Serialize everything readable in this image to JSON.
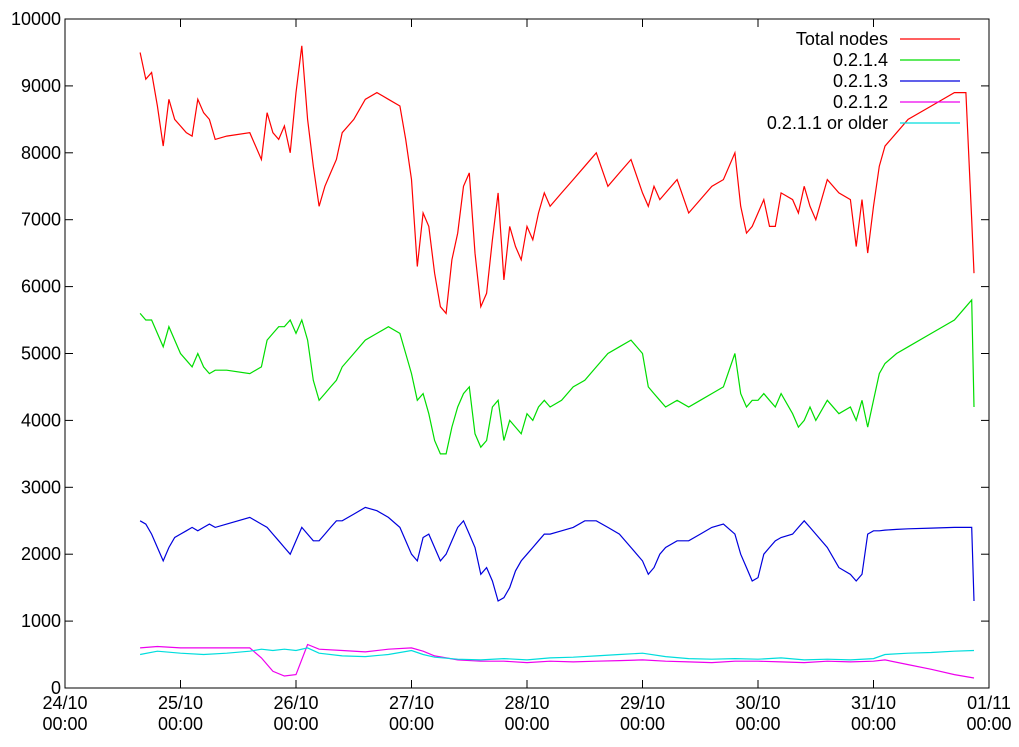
{
  "chart_data": {
    "type": "line",
    "title": "",
    "xlabel": "",
    "ylabel": "",
    "x_ticks": [
      "24/10\n00:00",
      "25/10\n00:00",
      "26/10\n00:00",
      "27/10\n00:00",
      "28/10\n00:00",
      "29/10\n00:00",
      "30/10\n00:00",
      "31/10\n00:00",
      "01/11\n00:00"
    ],
    "xlim": [
      0,
      8
    ],
    "ylim": [
      0,
      10000
    ],
    "y_ticks": [
      0,
      1000,
      2000,
      3000,
      4000,
      5000,
      6000,
      7000,
      8000,
      9000,
      10000
    ],
    "grid": false,
    "legend_position": "top-right",
    "series": [
      {
        "name": "Total nodes",
        "color": "#ff0000",
        "x": [
          0.65,
          0.7,
          0.75,
          0.8,
          0.85,
          0.9,
          0.95,
          1.0,
          1.05,
          1.1,
          1.15,
          1.2,
          1.25,
          1.3,
          1.4,
          1.6,
          1.7,
          1.75,
          1.8,
          1.85,
          1.9,
          1.95,
          2.0,
          2.05,
          2.1,
          2.15,
          2.2,
          2.25,
          2.3,
          2.35,
          2.4,
          2.5,
          2.6,
          2.7,
          2.8,
          2.9,
          2.95,
          3.0,
          3.05,
          3.1,
          3.15,
          3.2,
          3.25,
          3.3,
          3.35,
          3.4,
          3.45,
          3.5,
          3.55,
          3.6,
          3.65,
          3.7,
          3.75,
          3.8,
          3.85,
          3.9,
          3.95,
          4.0,
          4.05,
          4.1,
          4.15,
          4.2,
          4.3,
          4.4,
          4.5,
          4.6,
          4.7,
          4.8,
          4.9,
          5.0,
          5.05,
          5.1,
          5.15,
          5.2,
          5.3,
          5.4,
          5.5,
          5.6,
          5.7,
          5.8,
          5.85,
          5.9,
          5.95,
          6.0,
          6.05,
          6.1,
          6.15,
          6.2,
          6.3,
          6.35,
          6.4,
          6.45,
          6.5,
          6.6,
          6.7,
          6.8,
          6.85,
          6.9,
          6.95,
          7.0,
          7.05,
          7.1,
          7.2,
          7.3,
          7.5,
          7.7,
          7.8,
          7.85,
          7.87
        ],
        "y": [
          9500,
          9100,
          9200,
          8700,
          8100,
          8800,
          8500,
          8400,
          8300,
          8250,
          8800,
          8600,
          8500,
          8200,
          8250,
          8300,
          7900,
          8600,
          8300,
          8200,
          8400,
          8000,
          8900,
          9600,
          8500,
          7800,
          7200,
          7500,
          7700,
          7900,
          8300,
          8500,
          8800,
          8900,
          8800,
          8700,
          8200,
          7600,
          6300,
          7100,
          6900,
          6200,
          5700,
          5600,
          6400,
          6800,
          7500,
          7700,
          6500,
          5700,
          5900,
          6700,
          7400,
          6100,
          6900,
          6600,
          6400,
          6900,
          6700,
          7100,
          7400,
          7200,
          7400,
          7600,
          7800,
          8000,
          7500,
          7700,
          7900,
          7400,
          7200,
          7500,
          7300,
          7400,
          7600,
          7100,
          7300,
          7500,
          7600,
          8000,
          7200,
          6800,
          6900,
          7100,
          7300,
          6900,
          6900,
          7400,
          7300,
          7100,
          7500,
          7200,
          7000,
          7600,
          7400,
          7300,
          6600,
          7300,
          6500,
          7200,
          7800,
          8100,
          8300,
          8500,
          8700,
          8900,
          8900,
          7000,
          6200
        ]
      },
      {
        "name": "0.2.1.4",
        "color": "#00dd00",
        "x": [
          0.65,
          0.7,
          0.75,
          0.8,
          0.85,
          0.9,
          0.95,
          1.0,
          1.05,
          1.1,
          1.15,
          1.2,
          1.25,
          1.3,
          1.4,
          1.6,
          1.7,
          1.75,
          1.8,
          1.85,
          1.9,
          1.95,
          2.0,
          2.05,
          2.1,
          2.15,
          2.2,
          2.25,
          2.3,
          2.35,
          2.4,
          2.5,
          2.6,
          2.7,
          2.8,
          2.9,
          2.95,
          3.0,
          3.05,
          3.1,
          3.15,
          3.2,
          3.25,
          3.3,
          3.35,
          3.4,
          3.45,
          3.5,
          3.55,
          3.6,
          3.65,
          3.7,
          3.75,
          3.8,
          3.85,
          3.9,
          3.95,
          4.0,
          4.05,
          4.1,
          4.15,
          4.2,
          4.3,
          4.4,
          4.5,
          4.6,
          4.7,
          4.8,
          4.9,
          5.0,
          5.05,
          5.1,
          5.15,
          5.2,
          5.3,
          5.4,
          5.5,
          5.6,
          5.7,
          5.8,
          5.85,
          5.9,
          5.95,
          6.0,
          6.05,
          6.1,
          6.15,
          6.2,
          6.3,
          6.35,
          6.4,
          6.45,
          6.5,
          6.6,
          6.7,
          6.8,
          6.85,
          6.9,
          6.95,
          7.0,
          7.05,
          7.1,
          7.2,
          7.3,
          7.5,
          7.7,
          7.8,
          7.85,
          7.87
        ],
        "y": [
          5600,
          5500,
          5500,
          5300,
          5100,
          5400,
          5200,
          5000,
          4900,
          4800,
          5000,
          4800,
          4700,
          4750,
          4750,
          4700,
          4800,
          5200,
          5300,
          5400,
          5400,
          5500,
          5300,
          5500,
          5200,
          4600,
          4300,
          4400,
          4500,
          4600,
          4800,
          5000,
          5200,
          5300,
          5400,
          5300,
          5000,
          4700,
          4300,
          4400,
          4100,
          3700,
          3500,
          3500,
          3900,
          4200,
          4400,
          4500,
          3800,
          3600,
          3700,
          4200,
          4300,
          3700,
          4000,
          3900,
          3800,
          4100,
          4000,
          4200,
          4300,
          4200,
          4300,
          4500,
          4600,
          4800,
          5000,
          5100,
          5200,
          5000,
          4500,
          4400,
          4300,
          4200,
          4300,
          4200,
          4300,
          4400,
          4500,
          5000,
          4400,
          4200,
          4300,
          4300,
          4400,
          4300,
          4200,
          4400,
          4100,
          3900,
          4000,
          4200,
          4000,
          4300,
          4100,
          4200,
          4000,
          4300,
          3900,
          4300,
          4700,
          4850,
          5000,
          5100,
          5300,
          5500,
          5700,
          5800,
          4200
        ]
      },
      {
        "name": "0.2.1.3",
        "color": "#0000dd",
        "x": [
          0.65,
          0.7,
          0.75,
          0.8,
          0.85,
          0.9,
          0.95,
          1.0,
          1.05,
          1.1,
          1.15,
          1.2,
          1.25,
          1.3,
          1.4,
          1.6,
          1.7,
          1.75,
          1.8,
          1.85,
          1.9,
          1.95,
          2.0,
          2.05,
          2.1,
          2.15,
          2.2,
          2.25,
          2.3,
          2.35,
          2.4,
          2.5,
          2.6,
          2.7,
          2.8,
          2.9,
          2.95,
          3.0,
          3.05,
          3.1,
          3.15,
          3.2,
          3.25,
          3.3,
          3.35,
          3.4,
          3.45,
          3.5,
          3.55,
          3.6,
          3.65,
          3.7,
          3.75,
          3.8,
          3.85,
          3.9,
          3.95,
          4.0,
          4.05,
          4.1,
          4.15,
          4.2,
          4.3,
          4.4,
          4.5,
          4.6,
          4.7,
          4.8,
          4.9,
          5.0,
          5.05,
          5.1,
          5.15,
          5.2,
          5.3,
          5.4,
          5.5,
          5.6,
          5.7,
          5.8,
          5.85,
          5.9,
          5.95,
          6.0,
          6.05,
          6.1,
          6.15,
          6.2,
          6.3,
          6.35,
          6.4,
          6.45,
          6.5,
          6.6,
          6.7,
          6.8,
          6.85,
          6.9,
          6.95,
          7.0,
          7.05,
          7.1,
          7.2,
          7.3,
          7.5,
          7.7,
          7.8,
          7.85,
          7.87
        ],
        "y": [
          2500,
          2450,
          2300,
          2100,
          1900,
          2100,
          2250,
          2300,
          2350,
          2400,
          2350,
          2400,
          2450,
          2400,
          2450,
          2550,
          2450,
          2400,
          2300,
          2200,
          2100,
          2000,
          2200,
          2400,
          2300,
          2200,
          2200,
          2300,
          2400,
          2500,
          2500,
          2600,
          2700,
          2650,
          2550,
          2400,
          2200,
          2000,
          1900,
          2250,
          2300,
          2100,
          1900,
          2000,
          2200,
          2400,
          2500,
          2300,
          2100,
          1700,
          1800,
          1600,
          1300,
          1350,
          1500,
          1750,
          1900,
          2000,
          2100,
          2200,
          2300,
          2300,
          2350,
          2400,
          2500,
          2500,
          2400,
          2300,
          2100,
          1900,
          1700,
          1800,
          2000,
          2100,
          2200,
          2200,
          2300,
          2400,
          2450,
          2300,
          2000,
          1800,
          1600,
          1650,
          2000,
          2100,
          2200,
          2250,
          2300,
          2400,
          2500,
          2400,
          2300,
          2100,
          1800,
          1700,
          1600,
          1700,
          2300,
          2350,
          2350,
          2360,
          2370,
          2380,
          2390,
          2400,
          2400,
          2400,
          1300
        ]
      },
      {
        "name": "0.2.1.2",
        "color": "#ee00ee",
        "x": [
          0.65,
          0.8,
          1.0,
          1.2,
          1.4,
          1.6,
          1.7,
          1.8,
          1.9,
          2.0,
          2.1,
          2.2,
          2.4,
          2.6,
          2.8,
          3.0,
          3.1,
          3.2,
          3.4,
          3.6,
          3.8,
          4.0,
          4.2,
          4.4,
          4.6,
          4.8,
          5.0,
          5.2,
          5.4,
          5.6,
          5.8,
          6.0,
          6.2,
          6.4,
          6.6,
          6.8,
          7.0,
          7.1,
          7.3,
          7.5,
          7.7,
          7.87
        ],
        "y": [
          600,
          620,
          600,
          600,
          600,
          600,
          450,
          250,
          180,
          200,
          650,
          580,
          560,
          540,
          580,
          600,
          550,
          480,
          420,
          400,
          400,
          380,
          400,
          390,
          400,
          410,
          420,
          400,
          390,
          380,
          400,
          400,
          390,
          380,
          400,
          390,
          400,
          420,
          350,
          280,
          200,
          150
        ]
      },
      {
        "name": "0.2.1.1 or older",
        "color": "#00dddd",
        "x": [
          0.65,
          0.8,
          1.0,
          1.2,
          1.4,
          1.6,
          1.7,
          1.8,
          1.9,
          2.0,
          2.1,
          2.2,
          2.4,
          2.6,
          2.8,
          3.0,
          3.1,
          3.2,
          3.4,
          3.6,
          3.8,
          4.0,
          4.2,
          4.4,
          4.6,
          4.8,
          5.0,
          5.2,
          5.4,
          5.6,
          5.8,
          6.0,
          6.2,
          6.4,
          6.6,
          6.8,
          7.0,
          7.1,
          7.3,
          7.5,
          7.7,
          7.87
        ],
        "y": [
          500,
          550,
          520,
          500,
          520,
          550,
          580,
          560,
          580,
          560,
          600,
          520,
          480,
          470,
          500,
          560,
          500,
          460,
          430,
          420,
          440,
          420,
          450,
          460,
          480,
          500,
          520,
          470,
          440,
          430,
          440,
          430,
          450,
          420,
          430,
          420,
          440,
          500,
          520,
          530,
          550,
          560
        ]
      }
    ]
  }
}
